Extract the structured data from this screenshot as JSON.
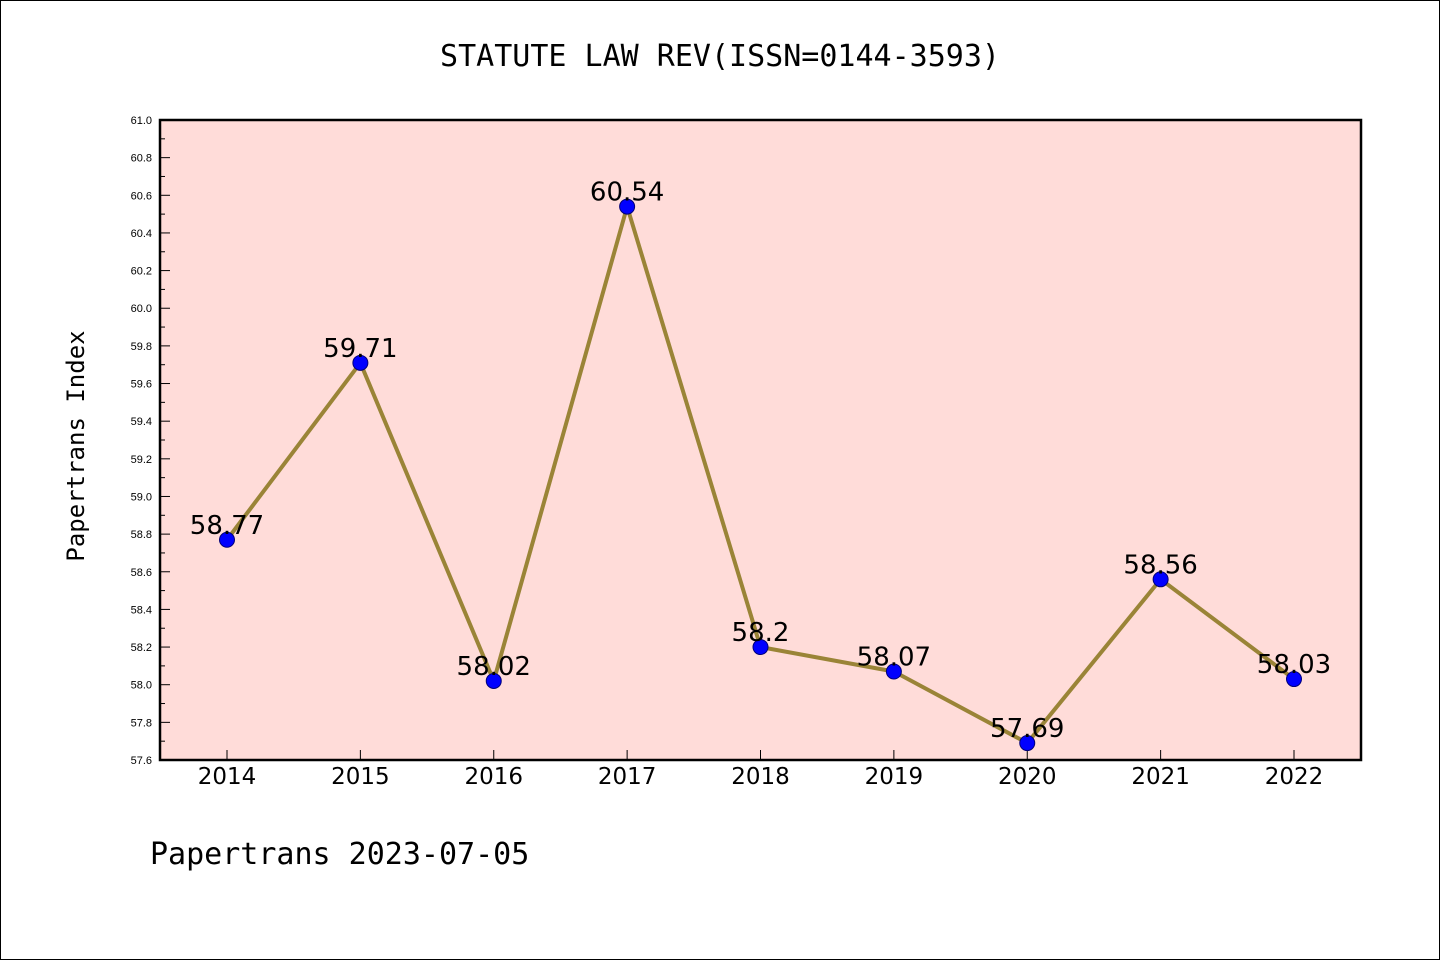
{
  "chart_data": {
    "type": "line",
    "title": "STATUTE LAW REV(ISSN=0144-3593)",
    "xlabel": "",
    "ylabel": "Papertrans Index",
    "categories": [
      "2014",
      "2015",
      "2016",
      "2017",
      "2018",
      "2019",
      "2020",
      "2021",
      "2022"
    ],
    "series": [
      {
        "values": [
          58.77,
          59.71,
          58.02,
          60.54,
          58.2,
          58.07,
          57.69,
          58.56,
          58.03
        ]
      }
    ],
    "data_labels": [
      "58.77",
      "59.71",
      "58.02",
      "60.54",
      "58.2",
      "58.07",
      "57.69",
      "58.56",
      "58.03"
    ],
    "ylim": [
      57.6,
      61.0
    ],
    "yticks": [
      "57.6",
      "57.8",
      "58.0",
      "58.2",
      "58.4",
      "58.6",
      "58.8",
      "59.0",
      "59.2",
      "59.4",
      "59.6",
      "59.8",
      "60.0",
      "60.2",
      "60.4",
      "60.6",
      "60.8",
      "61.0"
    ],
    "grid": false,
    "footer": "Papertrans 2023-07-05",
    "colors": {
      "plot_background": "#ffdcd9",
      "line": "#9a8437",
      "marker": "#0000ff",
      "axis": "#000000"
    }
  }
}
